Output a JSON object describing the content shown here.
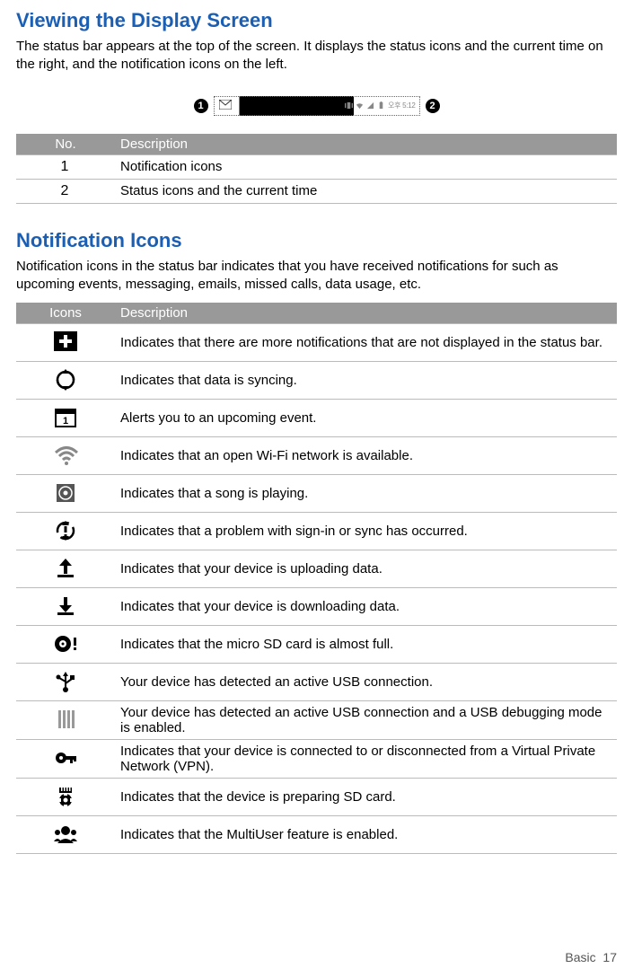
{
  "accent_color": "#1a5fb4",
  "section1": {
    "title": "Viewing the Display Screen",
    "para": "The status bar appears at the top of the screen. It displays the status icons and the current time on the right, and the notification icons on the   left."
  },
  "statusbar": {
    "marker_left": "1",
    "marker_right": "2",
    "time": "오후 5:12"
  },
  "table1": {
    "headers": [
      "No.",
      "Description"
    ],
    "rows": [
      {
        "no": "1",
        "desc": "Notification icons"
      },
      {
        "no": "2",
        "desc": "Status icons and the current  time"
      }
    ]
  },
  "section2": {
    "title": "Notification Icons",
    "para": "Notification icons in the status bar indicates that you have received notifications for such as upcoming events, messaging, emails, missed calls, data usage,  etc."
  },
  "table2": {
    "headers": [
      "Icons",
      "Description"
    ],
    "rows": [
      {
        "icon": "plus",
        "desc": "Indicates that there are more notifications that are not displayed in the status bar."
      },
      {
        "icon": "sync",
        "desc": "Indicates that data is  syncing."
      },
      {
        "icon": "calendar",
        "desc": "Alerts you to an upcoming  event."
      },
      {
        "icon": "wifi",
        "desc": "Indicates that an open Wi-Fi network is  available."
      },
      {
        "icon": "music",
        "desc": "Indicates that a song is  playing."
      },
      {
        "icon": "sync-alert",
        "desc": "Indicates that a problem with sign-in or sync has   occurred."
      },
      {
        "icon": "upload",
        "desc": "Indicates that your device is uploading  data."
      },
      {
        "icon": "download",
        "desc": "Indicates that your device is downloading  data."
      },
      {
        "icon": "sd-full",
        "desc": "Indicates that the micro SD card is almost  full."
      },
      {
        "icon": "usb",
        "desc": "Your device has detected an active USB  connection."
      },
      {
        "icon": "usb-debug",
        "desc": "Your device has detected an active USB connection and a USB debugging mode is enabled."
      },
      {
        "icon": "vpn",
        "desc": "Indicates that your device is connected to or disconnected from a Virtual Private Network (VPN)."
      },
      {
        "icon": "sd-prep",
        "desc": "Indicates that the device is preparing SD  card."
      },
      {
        "icon": "multiuser",
        "desc": "Indicates that the MultiUser feature is  enabled."
      }
    ]
  },
  "footer": {
    "section": "Basic",
    "page": "17"
  }
}
